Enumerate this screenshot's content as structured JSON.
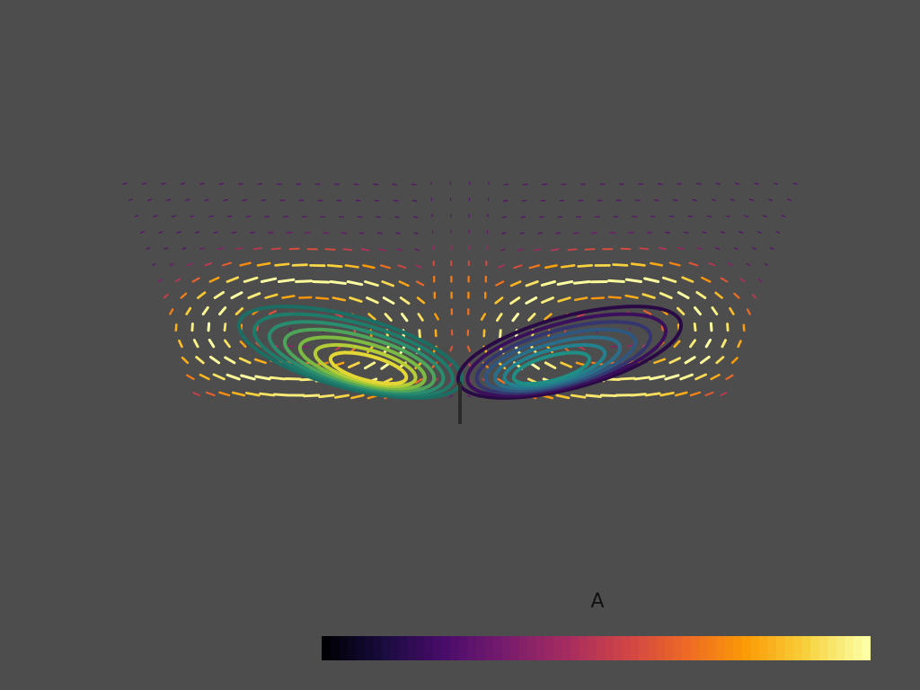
{
  "scene": {
    "background": "#4d4d4d",
    "description_colormap": "inferno",
    "trajectory_colormap": "viridis"
  },
  "scalar_bar": {
    "title": "A",
    "colormap": [
      "#000004",
      "#1b0c41",
      "#4a0c6b",
      "#781c6d",
      "#a52c60",
      "#cf4446",
      "#ed6925",
      "#fb9b06",
      "#f7d13d",
      "#fcffa4"
    ]
  }
}
